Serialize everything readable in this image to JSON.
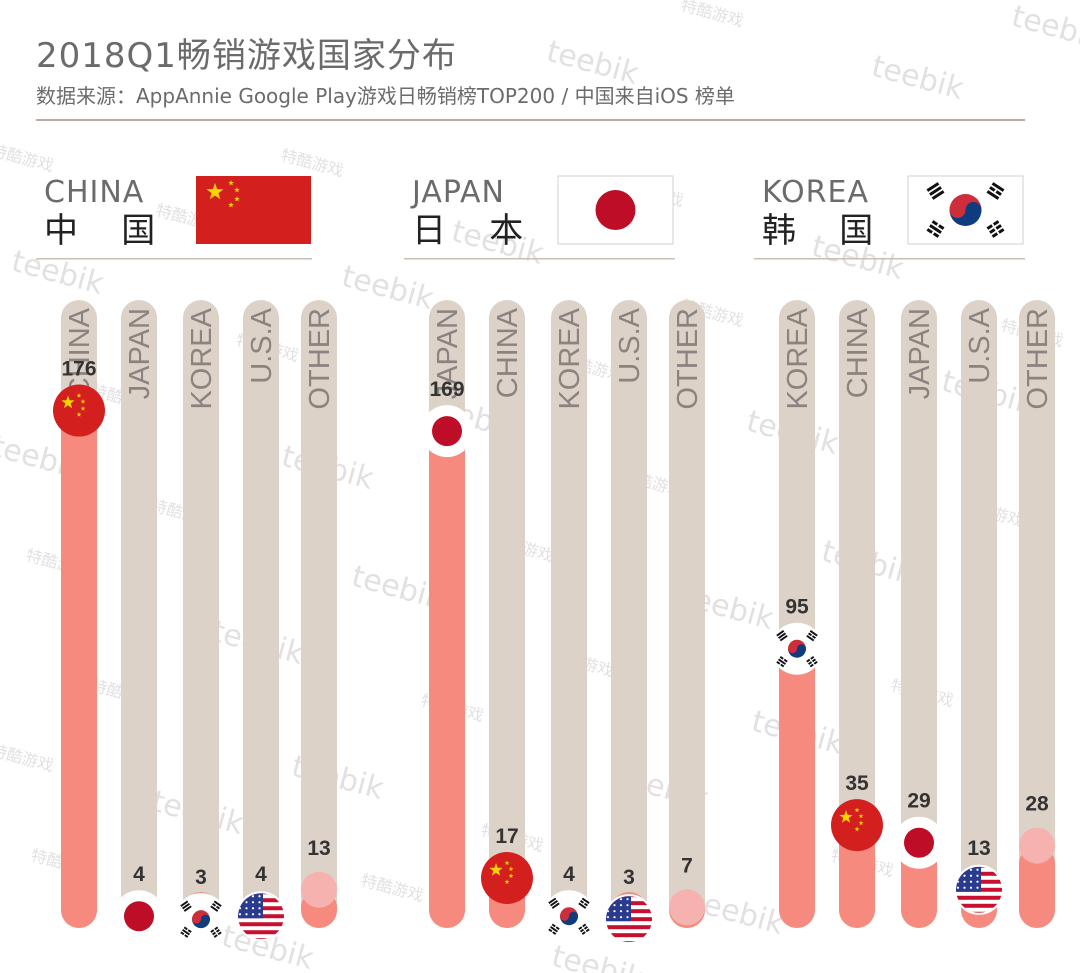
{
  "title": "2018Q1畅销游戏国家分布",
  "subtitle": "数据来源：AppAnnie Google Play游戏日畅销榜TOP200 / 中国来自iOS 榜单",
  "colors": {
    "track": "#ddd2c8",
    "fill": "#f78a7e",
    "other_marker": "#f5b2ae",
    "text": "#6b6b6b",
    "value_text": "#333333",
    "china_red": "#d3201f",
    "china_star": "#f7d300",
    "japan_red": "#be0d27",
    "korea_red": "#cd2e3a",
    "korea_blue": "#0f3b7f",
    "usa_red": "#c8102e",
    "usa_blue": "#2a3b8f"
  },
  "watermarks": [
    "teebik",
    "特酷游戏"
  ],
  "chart_data": [
    {
      "type": "bar",
      "title_en": "CHINA",
      "title_cn": "中  国",
      "flag": "china-flag",
      "categories": [
        "CHINA",
        "JAPAN",
        "KOREA",
        "U.S.A",
        "OTHER"
      ],
      "markers": [
        "china",
        "japan",
        "korea",
        "usa",
        "other"
      ],
      "values": [
        176,
        4,
        3,
        4,
        13
      ],
      "ylim": [
        0,
        200
      ]
    },
    {
      "type": "bar",
      "title_en": "JAPAN",
      "title_cn": "日  本",
      "flag": "japan-flag",
      "categories": [
        "JAPAN",
        "CHINA",
        "KOREA",
        "U.S.A",
        "OTHER"
      ],
      "markers": [
        "japan",
        "china",
        "korea",
        "usa",
        "other"
      ],
      "values": [
        169,
        17,
        4,
        3,
        7
      ],
      "ylim": [
        0,
        200
      ]
    },
    {
      "type": "bar",
      "title_en": "KOREA",
      "title_cn": "韩  国",
      "flag": "korea-flag",
      "categories": [
        "KOREA",
        "CHINA",
        "JAPAN",
        "U.S.A",
        "OTHER"
      ],
      "markers": [
        "korea",
        "china",
        "japan",
        "usa",
        "other"
      ],
      "values": [
        95,
        35,
        29,
        13,
        28
      ],
      "ylim": [
        0,
        200
      ]
    }
  ]
}
